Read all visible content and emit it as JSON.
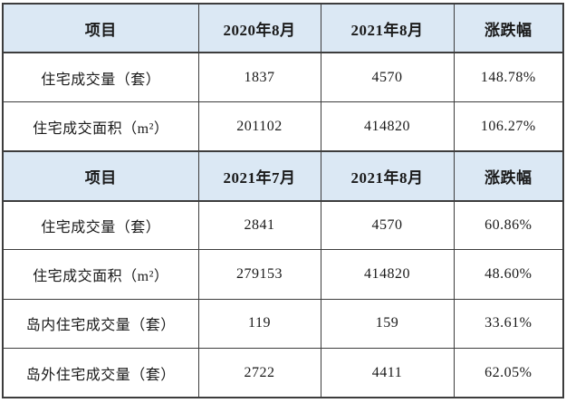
{
  "colors": {
    "header_background": "#dbe8f4",
    "border": "#3d3d3d",
    "text": "#1a1a1a",
    "page_background": "#ffffff"
  },
  "chart_data": [
    {
      "type": "table",
      "columns": [
        "项目",
        "2020年8月",
        "2021年8月",
        "涨跌幅"
      ],
      "rows": [
        [
          "住宅成交量（套）",
          "1837",
          "4570",
          "148.78%"
        ],
        [
          "住宅成交面积（m²）",
          "201102",
          "414820",
          "106.27%"
        ]
      ]
    },
    {
      "type": "table",
      "columns": [
        "项目",
        "2021年7月",
        "2021年8月",
        "涨跌幅"
      ],
      "rows": [
        [
          "住宅成交量（套）",
          "2841",
          "4570",
          "60.86%"
        ],
        [
          "住宅成交面积（m²）",
          "279153",
          "414820",
          "48.60%"
        ],
        [
          "岛内住宅成交量（套）",
          "119",
          "159",
          "33.61%"
        ],
        [
          "岛外住宅成交量（套）",
          "2722",
          "4411",
          "62.05%"
        ]
      ]
    }
  ]
}
